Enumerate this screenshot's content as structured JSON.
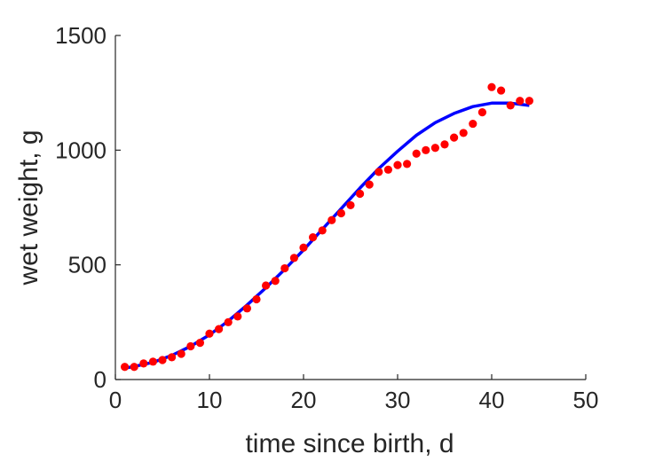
{
  "chart_data": {
    "type": "scatter",
    "title": "",
    "xlabel": "time since birth, d",
    "ylabel": "wet weight, g",
    "xlim": [
      0,
      50
    ],
    "ylim": [
      0,
      1500
    ],
    "xticks": [
      0,
      10,
      20,
      30,
      40,
      50
    ],
    "yticks": [
      0,
      500,
      1000,
      1500
    ],
    "grid": false,
    "legend": "none",
    "series": [
      {
        "type": "scatter",
        "color": "#ff0000",
        "x": [
          1,
          2,
          3,
          4,
          5,
          6,
          7,
          8,
          9,
          10,
          11,
          12,
          13,
          14,
          15,
          16,
          17,
          18,
          19,
          20,
          21,
          22,
          23,
          24,
          25,
          26,
          27,
          28,
          29,
          30,
          31,
          32,
          33,
          34,
          35,
          36,
          37,
          38,
          39,
          40,
          41,
          42,
          43,
          44
        ],
        "y": [
          55,
          55,
          70,
          78,
          85,
          97,
          112,
          145,
          160,
          200,
          220,
          250,
          275,
          310,
          350,
          410,
          430,
          485,
          530,
          575,
          620,
          650,
          695,
          725,
          760,
          810,
          850,
          905,
          915,
          935,
          940,
          985,
          1000,
          1010,
          1025,
          1055,
          1075,
          1115,
          1165,
          1275,
          1260,
          1195,
          1215,
          1215
        ]
      },
      {
        "type": "line",
        "color": "#0000ff",
        "x": [
          1,
          2,
          4,
          6,
          8,
          10,
          12,
          14,
          16,
          18,
          20,
          22,
          24,
          26,
          28,
          30,
          32,
          34,
          36,
          38,
          40,
          42,
          44
        ],
        "y": [
          50,
          57,
          75,
          105,
          145,
          195,
          255,
          325,
          400,
          480,
          565,
          655,
          745,
          835,
          920,
          995,
          1065,
          1120,
          1160,
          1190,
          1205,
          1205,
          1195
        ]
      }
    ]
  }
}
